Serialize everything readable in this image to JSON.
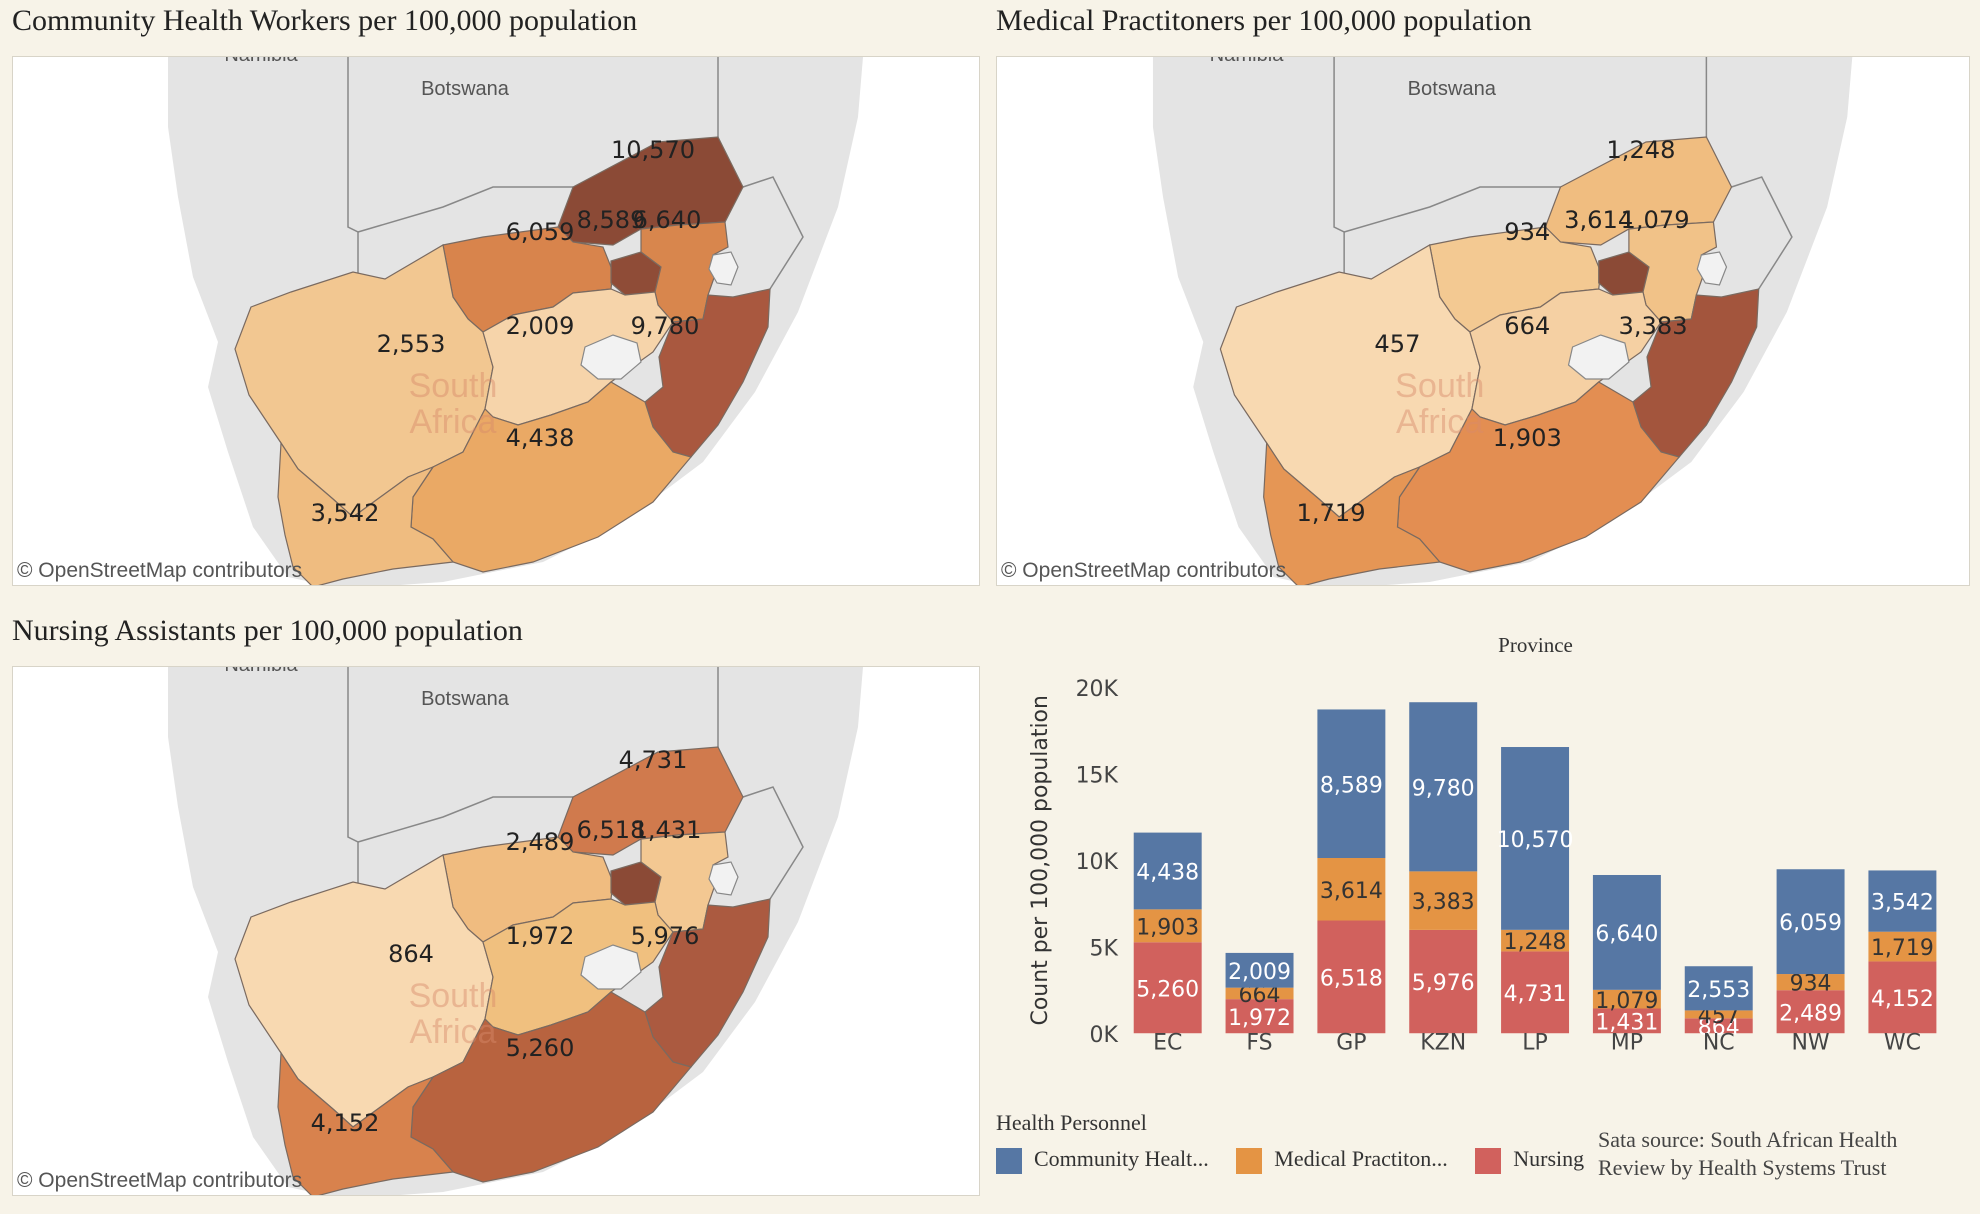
{
  "colors": {
    "community": "#5677a4",
    "medical": "#e49444",
    "nursing": "#d1615d",
    "map_land": "#e4e4e4",
    "map_border": "#bdbdbd",
    "lesotho": "#f2f2f2"
  },
  "map_attribution": "© OpenStreetMap contributors",
  "country_labels": {
    "namibia": "Namibia",
    "botswana": "Botswana",
    "south_africa": "South\nAfrica"
  },
  "maps": [
    {
      "title": "Community Health Workers per 100,000 population",
      "values": {
        "LP": "10,570",
        "NW": "6,059",
        "GP": "8,589",
        "MP": "6,640",
        "NC": "2,553",
        "FS": "2,009",
        "KZN": "9,780",
        "EC": "4,438",
        "WC": "3,542"
      },
      "fills": {
        "LP": "#8b4a36",
        "NW": "#d8844c",
        "GP": "#8f4c37",
        "MP": "#d8864d",
        "NC": "#f2c791",
        "FS": "#f6d4aa",
        "KZN": "#a9583f",
        "EC": "#eaa965",
        "WC": "#efbc80"
      }
    },
    {
      "title": "Medical Practitoners  per 100,000 population",
      "values": {
        "LP": "1,248",
        "NW": "934",
        "GP": "3,614",
        "MP": "1,079",
        "NC": "457",
        "FS": "664",
        "KZN": "3,383",
        "EC": "1,903",
        "WC": "1,719"
      },
      "fills": {
        "LP": "#f0bd80",
        "NW": "#f3c992",
        "GP": "#8b4a36",
        "MP": "#f1c288",
        "NC": "#f8d9b1",
        "FS": "#f5d0a3",
        "KZN": "#a3553d",
        "EC": "#e38e52",
        "WC": "#e59655"
      }
    },
    {
      "title": "Nursing Assistants  per 100,000 population",
      "values": {
        "LP": "4,731",
        "NW": "2,489",
        "GP": "6,518",
        "MP": "1,431",
        "NC": "864",
        "FS": "1,972",
        "KZN": "5,976",
        "EC": "5,260",
        "WC": "4,152"
      },
      "fills": {
        "LP": "#d07a4d",
        "NW": "#f0bc80",
        "GP": "#8b4a36",
        "MP": "#f3c892",
        "NC": "#f8d9b1",
        "FS": "#f0c07f",
        "KZN": "#ab5a40",
        "EC": "#b8633f",
        "WC": "#d8824d"
      }
    }
  ],
  "chart_data": {
    "type": "bar",
    "stacked": true,
    "title": "Province",
    "ylabel": "Count per 100,000 population",
    "ylim": [
      0,
      20000
    ],
    "yticks": [
      0,
      5000,
      10000,
      15000,
      20000
    ],
    "ytick_labels": [
      "0K",
      "5K",
      "10K",
      "15K",
      "20K"
    ],
    "categories": [
      "EC",
      "FS",
      "GP",
      "KZN",
      "LP",
      "MP",
      "NC",
      "NW",
      "WC"
    ],
    "series": [
      {
        "name": "Nursing Assistants",
        "color": "#d1615d",
        "label_color": "#ffffff",
        "values": [
          5260,
          1972,
          6518,
          5976,
          4731,
          1431,
          864,
          2489,
          4152
        ],
        "labels": [
          "5,260",
          "1,972",
          "6,518",
          "5,976",
          "4,731",
          "1,431",
          "864",
          "2,489",
          "4,152"
        ]
      },
      {
        "name": "Medical Practitoners",
        "color": "#e49444",
        "label_color": "#333333",
        "values": [
          1903,
          664,
          3614,
          3383,
          1248,
          1079,
          457,
          934,
          1719
        ],
        "labels": [
          "1,903",
          "664",
          "3,614",
          "3,383",
          "1,248",
          "1,079",
          "457",
          "934",
          "1,719"
        ]
      },
      {
        "name": "Community Health Workers",
        "color": "#5677a4",
        "label_color": "#ffffff",
        "values": [
          4438,
          2009,
          8589,
          9780,
          10570,
          6640,
          2553,
          6059,
          3542
        ],
        "labels": [
          "4,438",
          "2,009",
          "8,589",
          "9,780",
          "10,570",
          "6,640",
          "2,553",
          "6,059",
          "3,542"
        ]
      }
    ],
    "legend": {
      "title": "Health Personnel",
      "items": [
        {
          "label": "Community Healt...",
          "color": "#5677a4"
        },
        {
          "label": "Medical Practiton...",
          "color": "#e49444"
        },
        {
          "label": "Nursing Assistants",
          "color": "#d1615d"
        }
      ]
    }
  },
  "source": "Sata source: South African Health Review by Health Systems Trust"
}
